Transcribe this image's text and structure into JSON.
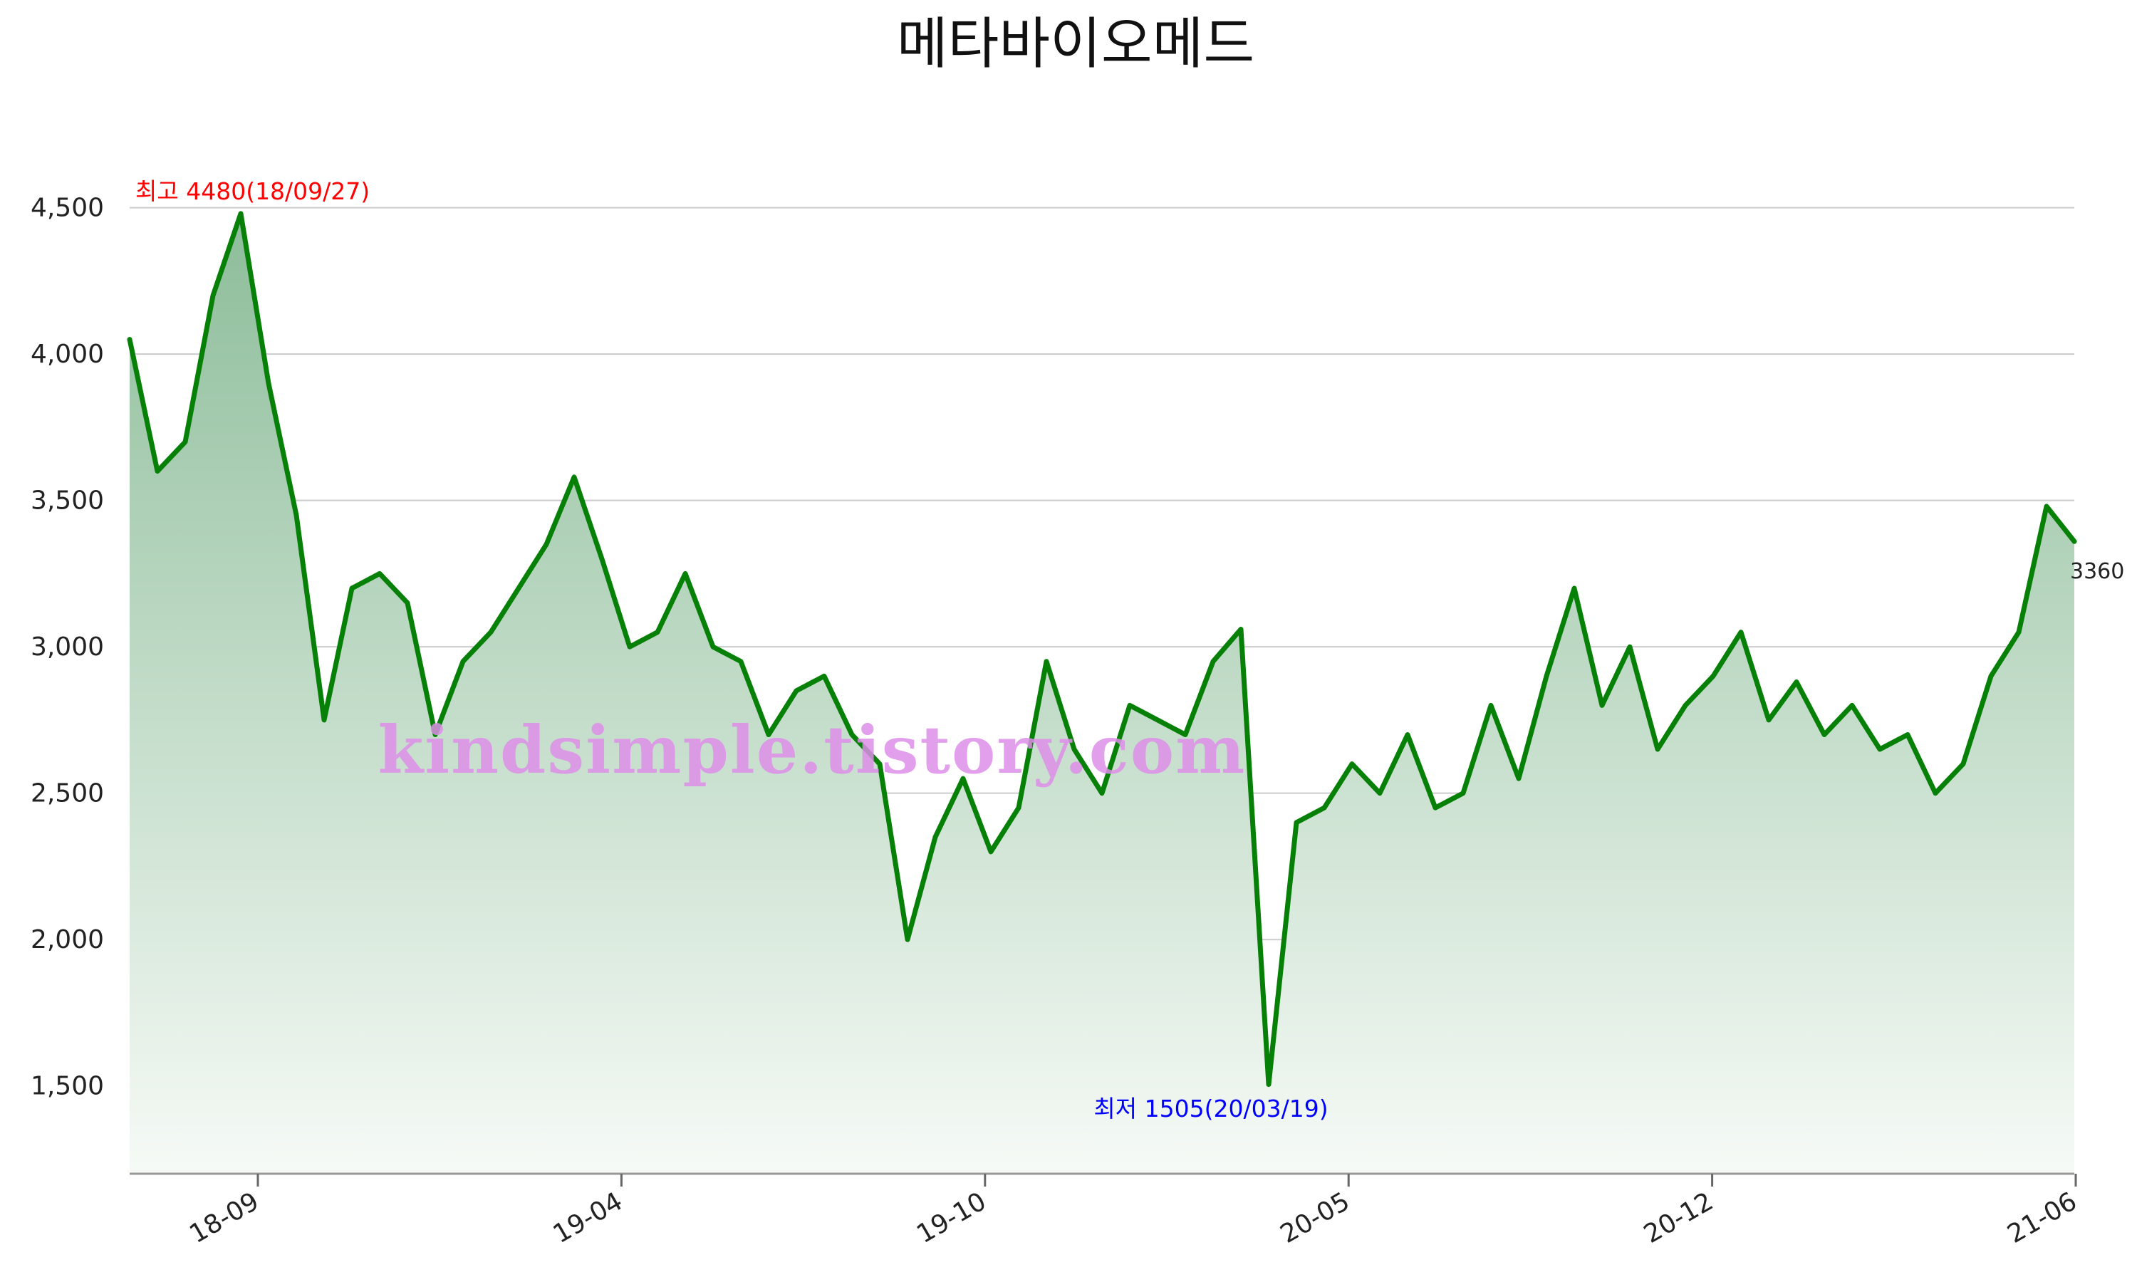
{
  "chart_data": {
    "type": "area",
    "title": "메타바이오메드",
    "ylim": [
      1200,
      4650
    ],
    "y_ticks": [
      1500,
      2000,
      2500,
      3000,
      3500,
      4000,
      4500
    ],
    "y_tick_labels": [
      "1,500",
      "2,000",
      "2,500",
      "3,000",
      "3,500",
      "4,000",
      "4,500"
    ],
    "x_ticks": [
      "18-09",
      "19-04",
      "19-10",
      "20-05",
      "20-12",
      "21-06"
    ],
    "grid": true,
    "colors": {
      "line": "#078007",
      "area_top": "#8dbd9a",
      "area_bottom": "#f6faf6",
      "high": "#ff0000",
      "low": "#0000ff"
    },
    "annotations": {
      "high": "최고 4480(18/09/27)",
      "low": "최저 1505(20/03/19)",
      "last": "3360"
    },
    "watermark": "kindsimple.tistory.com",
    "series": [
      {
        "x": [
          "2018-07",
          "2018-08",
          "2018-08",
          "2018-09",
          "2018-09",
          "2018-10",
          "2018-10",
          "2018-11",
          "2018-11",
          "2018-12",
          "2018-12",
          "2019-01",
          "2019-01",
          "2019-02",
          "2019-02",
          "2019-03",
          "2019-03",
          "2019-04",
          "2019-04",
          "2019-05",
          "2019-05",
          "2019-06",
          "2019-06",
          "2019-07",
          "2019-07",
          "2019-08",
          "2019-08",
          "2019-09",
          "2019-09",
          "2019-10",
          "2019-10",
          "2019-11",
          "2019-11",
          "2019-12",
          "2019-12",
          "2020-01",
          "2020-01",
          "2020-02",
          "2020-02",
          "2020-03",
          "2020-03",
          "2020-04",
          "2020-04",
          "2020-05",
          "2020-05",
          "2020-06",
          "2020-06",
          "2020-07",
          "2020-07",
          "2020-08",
          "2020-08",
          "2020-09",
          "2020-09",
          "2020-10",
          "2020-10",
          "2020-11",
          "2020-11",
          "2020-12",
          "2020-12",
          "2021-01",
          "2021-01",
          "2021-02",
          "2021-02",
          "2021-03",
          "2021-03",
          "2021-04",
          "2021-04",
          "2021-05",
          "2021-05",
          "2021-06",
          "2021-06"
        ],
        "values": [
          4050,
          3600,
          3700,
          4200,
          4480,
          3900,
          3450,
          2750,
          3200,
          3250,
          3150,
          2700,
          2950,
          3050,
          3200,
          3350,
          3580,
          3300,
          3000,
          3050,
          3250,
          3000,
          2950,
          2700,
          2850,
          2900,
          2700,
          2600,
          2000,
          2350,
          2550,
          2300,
          2450,
          2950,
          2650,
          2500,
          2800,
          2750,
          2700,
          2950,
          3060,
          1505,
          2400,
          2450,
          2600,
          2500,
          2700,
          2450,
          2500,
          2800,
          2550,
          2900,
          3200,
          2800,
          3000,
          2650,
          2800,
          2900,
          3050,
          2750,
          2880,
          2700,
          2800,
          2650,
          2700,
          2500,
          2600,
          2900,
          3050,
          3480,
          3360
        ]
      }
    ]
  }
}
